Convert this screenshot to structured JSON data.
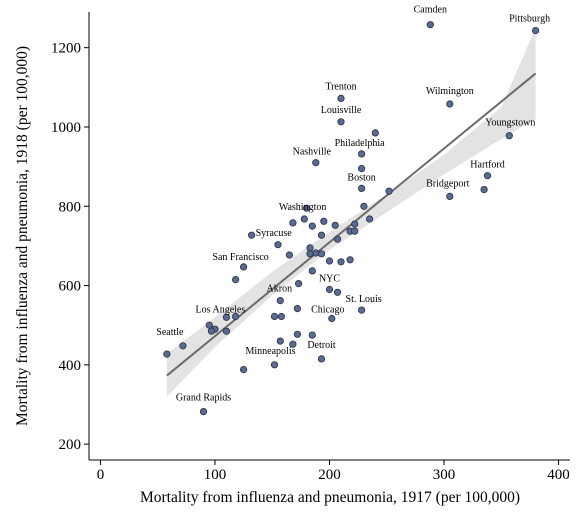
{
  "chart_data": {
    "type": "scatter",
    "xlabel": "Mortality from influenza and pneumonia, 1917 (per 100,000)",
    "ylabel": "Mortality from influenza and pneumonia, 1918 (per 100,000)",
    "xlim": [
      -10,
      410
    ],
    "ylim": [
      160,
      1290
    ],
    "xticks": [
      0,
      100,
      200,
      300,
      400
    ],
    "yticks": [
      200,
      400,
      600,
      800,
      1000,
      1200
    ],
    "grid": false,
    "colors": {
      "point_fill": "#5b6a8f",
      "point_stroke": "#26304a",
      "fit_line": "#6b6b6b",
      "ci_band": "#d9d9d9"
    },
    "fit": {
      "x": [
        58,
        380
      ],
      "y": [
        373,
        1135
      ]
    },
    "ci_band": {
      "x": [
        58,
        100,
        150,
        200,
        250,
        300,
        350,
        380
      ],
      "lower": [
        320,
        445,
        575,
        690,
        785,
        880,
        970,
        1020
      ],
      "upper": [
        428,
        520,
        635,
        735,
        830,
        930,
        1050,
        1250
      ]
    },
    "points": [
      {
        "x": 288,
        "y": 1258,
        "label": "Camden"
      },
      {
        "x": 380,
        "y": 1243,
        "label": "Pittsburgh"
      },
      {
        "x": 210,
        "y": 1072,
        "label": "Trenton"
      },
      {
        "x": 305,
        "y": 1058,
        "label": "Wilmington"
      },
      {
        "x": 210,
        "y": 1013,
        "label": "Louisville"
      },
      {
        "x": 357,
        "y": 978,
        "label": "Youngstown"
      },
      {
        "x": 240,
        "y": 985,
        "label": ""
      },
      {
        "x": 228,
        "y": 932,
        "label": "Philadelphia"
      },
      {
        "x": 188,
        "y": 910,
        "label": "Nashville"
      },
      {
        "x": 228,
        "y": 895,
        "label": ""
      },
      {
        "x": 338,
        "y": 877,
        "label": "Hartford"
      },
      {
        "x": 228,
        "y": 845,
        "label": "Boston"
      },
      {
        "x": 335,
        "y": 842,
        "label": ""
      },
      {
        "x": 252,
        "y": 838,
        "label": ""
      },
      {
        "x": 305,
        "y": 825,
        "label": "Bridgeport"
      },
      {
        "x": 230,
        "y": 800,
        "label": ""
      },
      {
        "x": 180,
        "y": 795,
        "label": "Washington"
      },
      {
        "x": 178,
        "y": 768,
        "label": ""
      },
      {
        "x": 168,
        "y": 758,
        "label": ""
      },
      {
        "x": 195,
        "y": 762,
        "label": ""
      },
      {
        "x": 235,
        "y": 768,
        "label": ""
      },
      {
        "x": 185,
        "y": 750,
        "label": ""
      },
      {
        "x": 205,
        "y": 752,
        "label": ""
      },
      {
        "x": 222,
        "y": 755,
        "label": ""
      },
      {
        "x": 218,
        "y": 737,
        "label": ""
      },
      {
        "x": 222,
        "y": 737,
        "label": ""
      },
      {
        "x": 132,
        "y": 727,
        "label": "Syracuse"
      },
      {
        "x": 193,
        "y": 727,
        "label": ""
      },
      {
        "x": 207,
        "y": 717,
        "label": ""
      },
      {
        "x": 155,
        "y": 703,
        "label": ""
      },
      {
        "x": 183,
        "y": 695,
        "label": ""
      },
      {
        "x": 188,
        "y": 682,
        "label": ""
      },
      {
        "x": 183,
        "y": 680,
        "label": ""
      },
      {
        "x": 165,
        "y": 677,
        "label": ""
      },
      {
        "x": 193,
        "y": 680,
        "label": ""
      },
      {
        "x": 200,
        "y": 662,
        "label": ""
      },
      {
        "x": 210,
        "y": 660,
        "label": ""
      },
      {
        "x": 218,
        "y": 665,
        "label": ""
      },
      {
        "x": 125,
        "y": 647,
        "label": "San Francisco"
      },
      {
        "x": 185,
        "y": 637,
        "label": ""
      },
      {
        "x": 118,
        "y": 615,
        "label": ""
      },
      {
        "x": 173,
        "y": 605,
        "label": ""
      },
      {
        "x": 200,
        "y": 590,
        "label": "NYC"
      },
      {
        "x": 207,
        "y": 583,
        "label": ""
      },
      {
        "x": 157,
        "y": 562,
        "label": "Akron"
      },
      {
        "x": 228,
        "y": 538,
        "label": "St. Louis"
      },
      {
        "x": 172,
        "y": 542,
        "label": ""
      },
      {
        "x": 152,
        "y": 522,
        "label": ""
      },
      {
        "x": 158,
        "y": 522,
        "label": ""
      },
      {
        "x": 202,
        "y": 517,
        "label": "Chicago"
      },
      {
        "x": 110,
        "y": 520,
        "label": "Los Angeles"
      },
      {
        "x": 118,
        "y": 522,
        "label": ""
      },
      {
        "x": 95,
        "y": 500,
        "label": ""
      },
      {
        "x": 100,
        "y": 490,
        "label": ""
      },
      {
        "x": 110,
        "y": 485,
        "label": ""
      },
      {
        "x": 97,
        "y": 485,
        "label": ""
      },
      {
        "x": 172,
        "y": 477,
        "label": ""
      },
      {
        "x": 185,
        "y": 475,
        "label": ""
      },
      {
        "x": 157,
        "y": 460,
        "label": ""
      },
      {
        "x": 168,
        "y": 452,
        "label": ""
      },
      {
        "x": 72,
        "y": 448,
        "label": "Seattle"
      },
      {
        "x": 58,
        "y": 427,
        "label": ""
      },
      {
        "x": 193,
        "y": 415,
        "label": "Detroit"
      },
      {
        "x": 152,
        "y": 400,
        "label": "Minneapolis"
      },
      {
        "x": 125,
        "y": 388,
        "label": ""
      },
      {
        "x": 90,
        "y": 282,
        "label": "Grand Rapids"
      }
    ]
  }
}
